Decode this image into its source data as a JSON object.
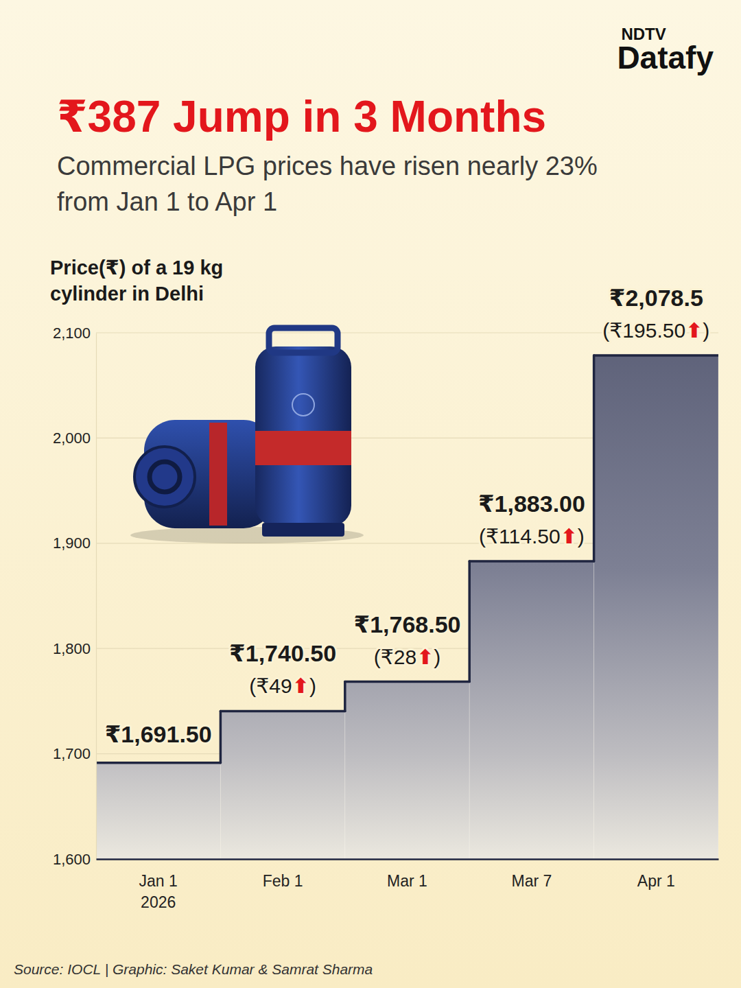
{
  "chart_data": {
    "type": "step",
    "publisher": "NDTV",
    "brand": "Datafy",
    "title": "₹387 Jump in 3 Months",
    "subtitle": "Commercial LPG prices have risen nearly 23% from Jan 1 to Apr 1",
    "ylabel": "Price(₹) of a 19 kg cylinder in Delhi",
    "categories": [
      "Jan 1\n2026",
      "Feb 1",
      "Mar 1",
      "Mar 7",
      "Apr 1"
    ],
    "values": [
      1691.5,
      1740.5,
      1768.5,
      1883,
      2078.5
    ],
    "value_labels": [
      "₹1,691.50",
      "₹1,740.50",
      "₹1,768.50",
      "₹1,883.00",
      "₹2,078.5"
    ],
    "changes": [
      null,
      49,
      28,
      114.5,
      195.5
    ],
    "change_labels": [
      null,
      "(₹49⬆)",
      "(₹28⬆)",
      "(₹114.50⬆)",
      "(₹195.50⬆)"
    ],
    "color": "#1f2540",
    "ylim": [
      1600,
      2100
    ],
    "yticks": [
      {
        "value": 1600,
        "label": "1,600"
      },
      {
        "value": 1700,
        "label": "1,700"
      },
      {
        "value": 1800,
        "label": "1,800"
      },
      {
        "value": 1900,
        "label": "1,900"
      },
      {
        "value": 2000,
        "label": "2,000"
      },
      {
        "value": 2100,
        "label": "2,100"
      }
    ],
    "grid": true,
    "data_labels": true,
    "source": "Source: IOCL | Graphic: Saket Kumar & Samrat Sharma"
  }
}
